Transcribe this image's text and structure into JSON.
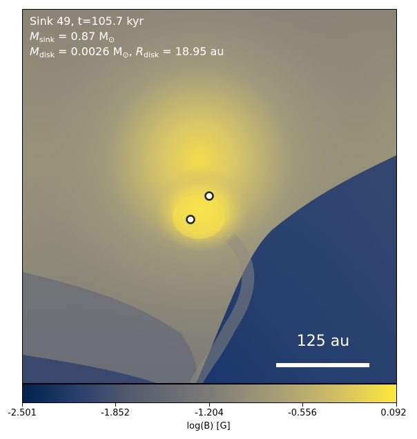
{
  "annotation": {
    "line1": "Sink 49, t=105.7 kyr",
    "m_sink_symbol": "M",
    "m_sink_sub": "sink",
    "m_sink_value": " = 0.87 M",
    "solar": "⊙",
    "m_disk_symbol": "M",
    "m_disk_sub": "disk",
    "m_disk_value": " = 0.0026 M",
    "r_disk_symbol": "R",
    "r_disk_sub": "disk",
    "r_disk_value": " = 18.95 au",
    "comma": ", "
  },
  "scale_bar": {
    "label": "125 au"
  },
  "colorbar": {
    "label": "log(B) [G]",
    "ticks": [
      "-2.501",
      "-1.852",
      "-1.204",
      "-0.556",
      "0.092"
    ],
    "cmap": [
      "#00224e",
      "#575d6d",
      "#7c7b78",
      "#d3c164",
      "#fee838"
    ]
  },
  "sinks": {
    "count": 2
  }
}
